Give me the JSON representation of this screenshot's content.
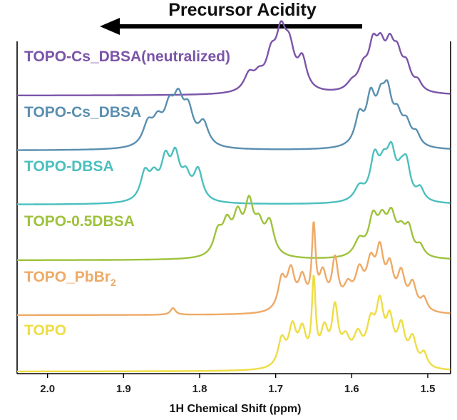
{
  "header": {
    "text": "Precursor Acidity"
  },
  "chart_data": {
    "type": "line",
    "title": "",
    "xlabel": "1H Chemical Shift (ppm)",
    "ylabel": "",
    "xlim": [
      2.04,
      1.47
    ],
    "x_reversed": true,
    "xticks": [
      2.0,
      1.9,
      1.8,
      1.7,
      1.6,
      1.5
    ],
    "xtick_labels": [
      "2.0",
      "1.9",
      "1.8",
      "1.7",
      "1.6",
      "1.5"
    ],
    "annotation": {
      "text": "Precursor Acidity",
      "arrow_direction": "left"
    },
    "series": [
      {
        "name": "TOPO-Cs_DBSA(neutralized)",
        "name_main": "TOPO-Cs_DBSA(neutralized)",
        "name_sub": "",
        "color": "#7b55a8",
        "baseline": 0,
        "peaks": [
          [
            1.735,
            0.28,
            0.008
          ],
          [
            1.722,
            0.22,
            0.008
          ],
          [
            1.706,
            0.52,
            0.008
          ],
          [
            1.693,
            0.85,
            0.008
          ],
          [
            1.682,
            0.62,
            0.008
          ],
          [
            1.665,
            0.5,
            0.007
          ],
          [
            1.6,
            0.12,
            0.008
          ],
          [
            1.585,
            0.35,
            0.008
          ],
          [
            1.572,
            0.65,
            0.007
          ],
          [
            1.562,
            0.58,
            0.007
          ],
          [
            1.55,
            0.62,
            0.007
          ],
          [
            1.54,
            0.5,
            0.007
          ],
          [
            1.528,
            0.38,
            0.007
          ],
          [
            1.513,
            0.15,
            0.006
          ]
        ]
      },
      {
        "name": "TOPO-Cs_DBSA",
        "name_main": "TOPO-Cs_DBSA",
        "name_sub": "",
        "color": "#5a8fb0",
        "baseline": 0,
        "peaks": [
          [
            1.868,
            0.3,
            0.008
          ],
          [
            1.855,
            0.3,
            0.008
          ],
          [
            1.84,
            0.45,
            0.008
          ],
          [
            1.828,
            0.55,
            0.008
          ],
          [
            1.815,
            0.45,
            0.008
          ],
          [
            1.795,
            0.32,
            0.008
          ],
          [
            1.59,
            0.4,
            0.007
          ],
          [
            1.575,
            0.62,
            0.007
          ],
          [
            1.562,
            0.48,
            0.007
          ],
          [
            1.553,
            0.62,
            0.007
          ],
          [
            1.54,
            0.35,
            0.007
          ],
          [
            1.528,
            0.28,
            0.007
          ],
          [
            1.515,
            0.16,
            0.006
          ]
        ]
      },
      {
        "name": "TOPO-DBSA",
        "name_main": "TOPO-DBSA",
        "name_sub": "",
        "color": "#4cbfbf",
        "baseline": 0,
        "peaks": [
          [
            1.872,
            0.4,
            0.007
          ],
          [
            1.86,
            0.3,
            0.007
          ],
          [
            1.845,
            0.55,
            0.007
          ],
          [
            1.832,
            0.6,
            0.007
          ],
          [
            1.818,
            0.32,
            0.007
          ],
          [
            1.802,
            0.45,
            0.007
          ],
          [
            1.59,
            0.2,
            0.008
          ],
          [
            1.57,
            0.6,
            0.007
          ],
          [
            1.558,
            0.4,
            0.007
          ],
          [
            1.548,
            0.62,
            0.007
          ],
          [
            1.535,
            0.3,
            0.007
          ],
          [
            1.528,
            0.45,
            0.006
          ],
          [
            1.51,
            0.18,
            0.006
          ]
        ]
      },
      {
        "name": "TOPO-0.5DBSA",
        "name_main": "TOPO-0.5DBSA",
        "name_sub": "",
        "color": "#9ec23c",
        "baseline": 0,
        "peaks": [
          [
            1.776,
            0.35,
            0.007
          ],
          [
            1.764,
            0.45,
            0.007
          ],
          [
            1.75,
            0.55,
            0.007
          ],
          [
            1.735,
            0.75,
            0.007
          ],
          [
            1.722,
            0.4,
            0.007
          ],
          [
            1.708,
            0.5,
            0.007
          ],
          [
            1.59,
            0.25,
            0.008
          ],
          [
            1.572,
            0.55,
            0.007
          ],
          [
            1.56,
            0.45,
            0.007
          ],
          [
            1.548,
            0.55,
            0.007
          ],
          [
            1.535,
            0.32,
            0.007
          ],
          [
            1.525,
            0.38,
            0.006
          ],
          [
            1.51,
            0.16,
            0.006
          ]
        ]
      },
      {
        "name": "TOPO_PbBr2",
        "name_main": "TOPO_PbBr",
        "name_sub": "2",
        "color": "#eeaa66",
        "baseline": 0,
        "peaks": [
          [
            1.835,
            0.1,
            0.004
          ],
          [
            1.692,
            0.45,
            0.006
          ],
          [
            1.68,
            0.55,
            0.006
          ],
          [
            1.665,
            0.45,
            0.006
          ],
          [
            1.65,
            1.15,
            0.003
          ],
          [
            1.638,
            0.5,
            0.006
          ],
          [
            1.622,
            0.7,
            0.005
          ],
          [
            1.605,
            0.3,
            0.007
          ],
          [
            1.59,
            0.5,
            0.007
          ],
          [
            1.575,
            0.6,
            0.007
          ],
          [
            1.563,
            0.75,
            0.006
          ],
          [
            1.55,
            0.55,
            0.006
          ],
          [
            1.535,
            0.5,
            0.006
          ],
          [
            1.52,
            0.38,
            0.006
          ],
          [
            1.505,
            0.18,
            0.005
          ]
        ]
      },
      {
        "name": "TOPO",
        "name_main": "TOPO",
        "name_sub": "",
        "color": "#eedd44",
        "baseline": 0,
        "peaks": [
          [
            1.692,
            0.4,
            0.006
          ],
          [
            1.678,
            0.55,
            0.006
          ],
          [
            1.665,
            0.5,
            0.006
          ],
          [
            1.65,
            1.2,
            0.003
          ],
          [
            1.636,
            0.5,
            0.006
          ],
          [
            1.622,
            0.8,
            0.005
          ],
          [
            1.608,
            0.35,
            0.007
          ],
          [
            1.592,
            0.4,
            0.007
          ],
          [
            1.575,
            0.55,
            0.007
          ],
          [
            1.563,
            0.8,
            0.006
          ],
          [
            1.55,
            0.6,
            0.006
          ],
          [
            1.535,
            0.55,
            0.006
          ],
          [
            1.52,
            0.4,
            0.006
          ],
          [
            1.505,
            0.2,
            0.005
          ]
        ]
      }
    ]
  }
}
